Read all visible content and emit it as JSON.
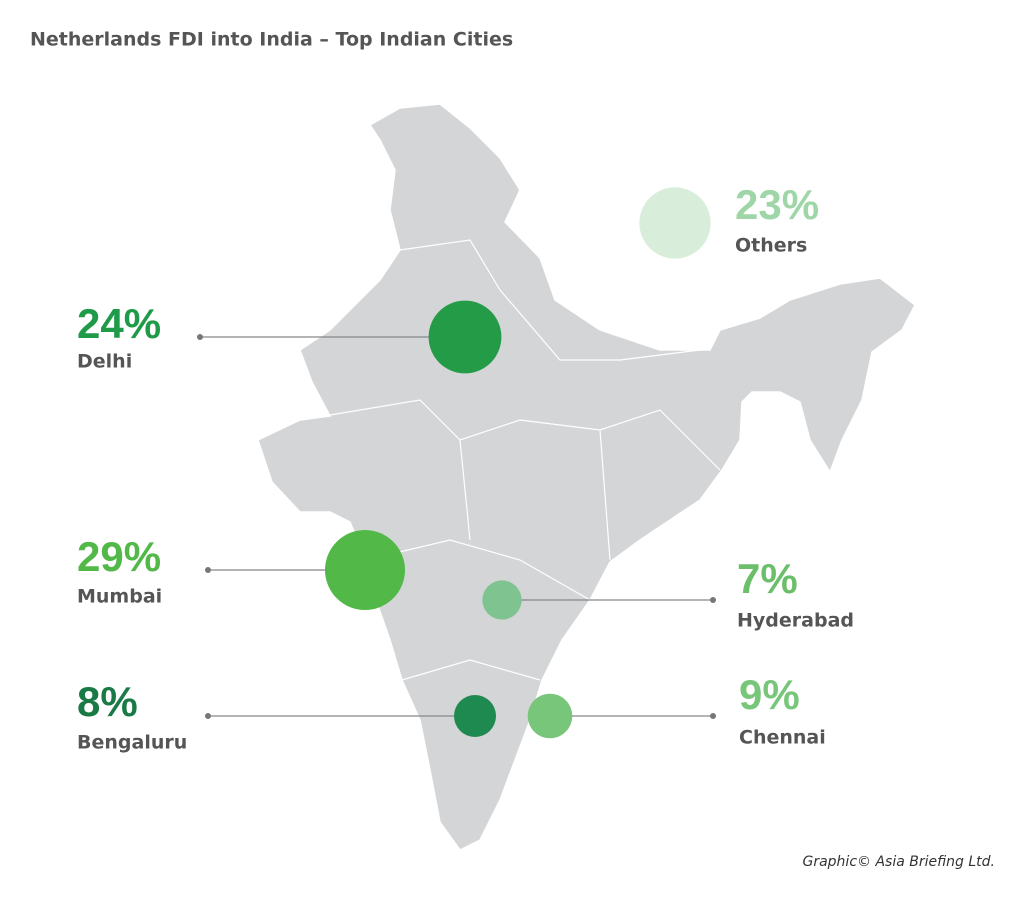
{
  "chart_data": {
    "type": "bubble",
    "title": "Netherlands FDI into India – Top Indian Cities",
    "categories": [
      "Delhi",
      "Mumbai",
      "Bengaluru",
      "Hyderabad",
      "Chennai",
      "Others"
    ],
    "values": [
      24,
      29,
      8,
      7,
      9,
      23
    ],
    "value_labels": [
      "24%",
      "29%",
      "8%",
      "7%",
      "9%",
      "23%"
    ],
    "colors": [
      "#239b47",
      "#52b848",
      "#1e8a50",
      "#7fc490",
      "#78c67a",
      "#d8eedb"
    ],
    "label_colors": [
      "#1e9a49",
      "#52b848",
      "#1a7a45",
      "#6cbf6a",
      "#78c67a",
      "#9fd6a7"
    ],
    "source": "Graphic© Asia Briefing Ltd."
  }
}
